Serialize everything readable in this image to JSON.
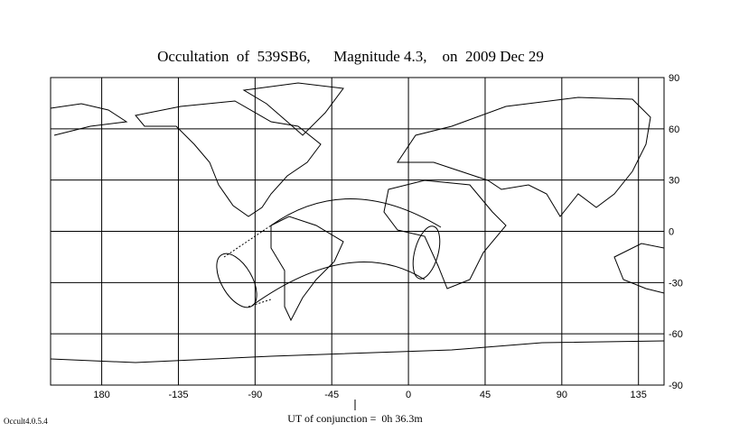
{
  "map": {
    "title": "Occultation  of  539SB6,      Magnitude 4.3,    on  2009 Dec 29",
    "xlim": [
      -210,
      150
    ],
    "ylim": [
      -90,
      90
    ],
    "longitude_ticks": [
      180,
      -135,
      -90,
      -45,
      0,
      45,
      90,
      135
    ],
    "latitude_ticks": [
      90,
      60,
      30,
      0,
      -30,
      -60,
      -90
    ],
    "conjunction_label": "UT of conjunction =  0h 36.3m",
    "version": "Occult4.0.5.4"
  }
}
